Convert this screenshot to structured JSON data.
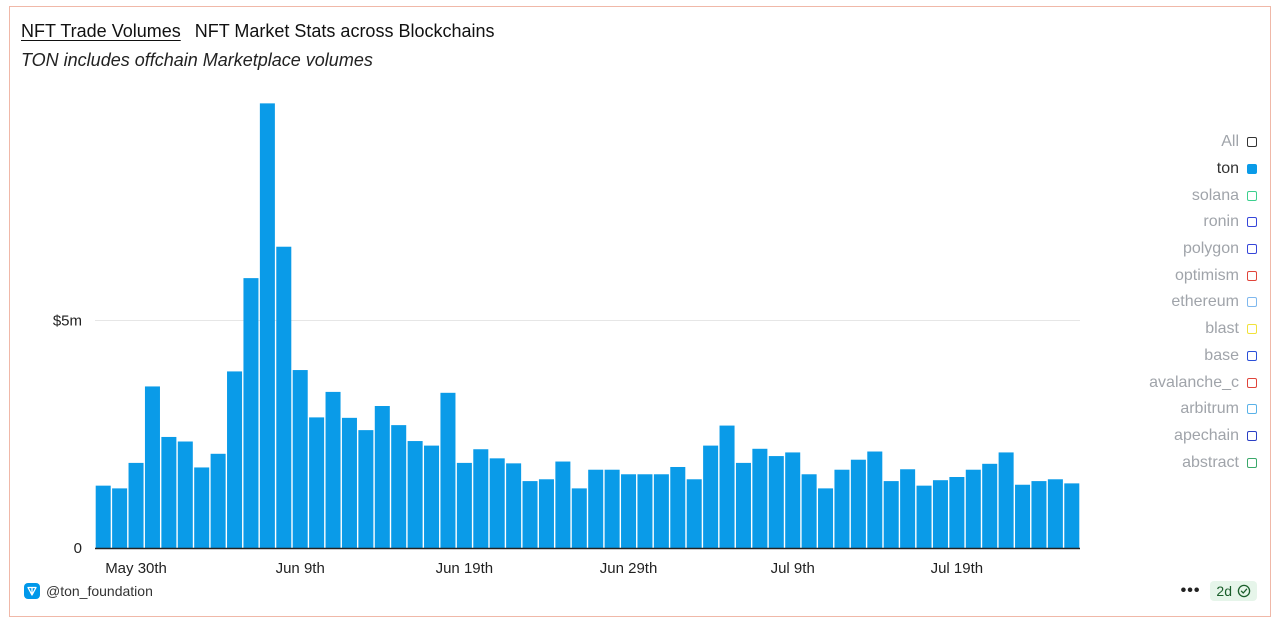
{
  "header": {
    "title": "NFT Trade Volumes",
    "subtitle": "NFT Market Stats across Blockchains",
    "caption": "TON includes offchain Marketplace volumes"
  },
  "legend": [
    {
      "label": "All",
      "color": "#333333",
      "active": false
    },
    {
      "label": "ton",
      "color": "#0a9be8",
      "active": true
    },
    {
      "label": "solana",
      "color": "#3ccf8e",
      "active": false
    },
    {
      "label": "ronin",
      "color": "#3646d9",
      "active": false
    },
    {
      "label": "polygon",
      "color": "#3646d9",
      "active": false
    },
    {
      "label": "optimism",
      "color": "#e0443a",
      "active": false
    },
    {
      "label": "ethereum",
      "color": "#7fb8ee",
      "active": false
    },
    {
      "label": "blast",
      "color": "#f1e23a",
      "active": false
    },
    {
      "label": "base",
      "color": "#2b4fd8",
      "active": false
    },
    {
      "label": "avalanche_c",
      "color": "#e0443a",
      "active": false
    },
    {
      "label": "arbitrum",
      "color": "#5ab2e8",
      "active": false
    },
    {
      "label": "apechain",
      "color": "#2b3fc4",
      "active": false
    },
    {
      "label": "abstract",
      "color": "#3aa86a",
      "active": false
    }
  ],
  "footer": {
    "handle": "@ton_foundation",
    "menu_label": "•••",
    "refresh_badge": "2d"
  },
  "chart_data": {
    "type": "bar",
    "series": [
      {
        "name": "ton",
        "color": "#0a9be8"
      }
    ],
    "x_ticks": [
      "May 30th",
      "Jun 9th",
      "Jun 19th",
      "Jun 29th",
      "Jul 9th",
      "Jul 19th"
    ],
    "x_tick_bar_index": [
      2,
      12,
      22,
      32,
      42,
      52
    ],
    "y_ticks": [
      {
        "value": 0,
        "label": "0"
      },
      {
        "value": 5000000,
        "label": "$5m"
      }
    ],
    "ylim": [
      0,
      9800000
    ],
    "values": [
      1370000,
      1310000,
      1870000,
      3550000,
      2440000,
      2340000,
      1770000,
      2070000,
      3880000,
      5930000,
      9770000,
      6620000,
      3910000,
      2870000,
      3430000,
      2860000,
      2590000,
      3120000,
      2700000,
      2350000,
      2250000,
      3410000,
      1870000,
      2170000,
      1970000,
      1860000,
      1470000,
      1510000,
      1900000,
      1310000,
      1720000,
      1720000,
      1620000,
      1620000,
      1620000,
      1780000,
      1510000,
      2250000,
      2690000,
      1870000,
      2180000,
      2020000,
      2100000,
      1620000,
      1310000,
      1720000,
      1940000,
      2120000,
      1470000,
      1730000,
      1370000,
      1490000,
      1560000,
      1720000,
      1850000,
      2100000,
      1390000,
      1470000,
      1510000,
      1420000
    ]
  }
}
